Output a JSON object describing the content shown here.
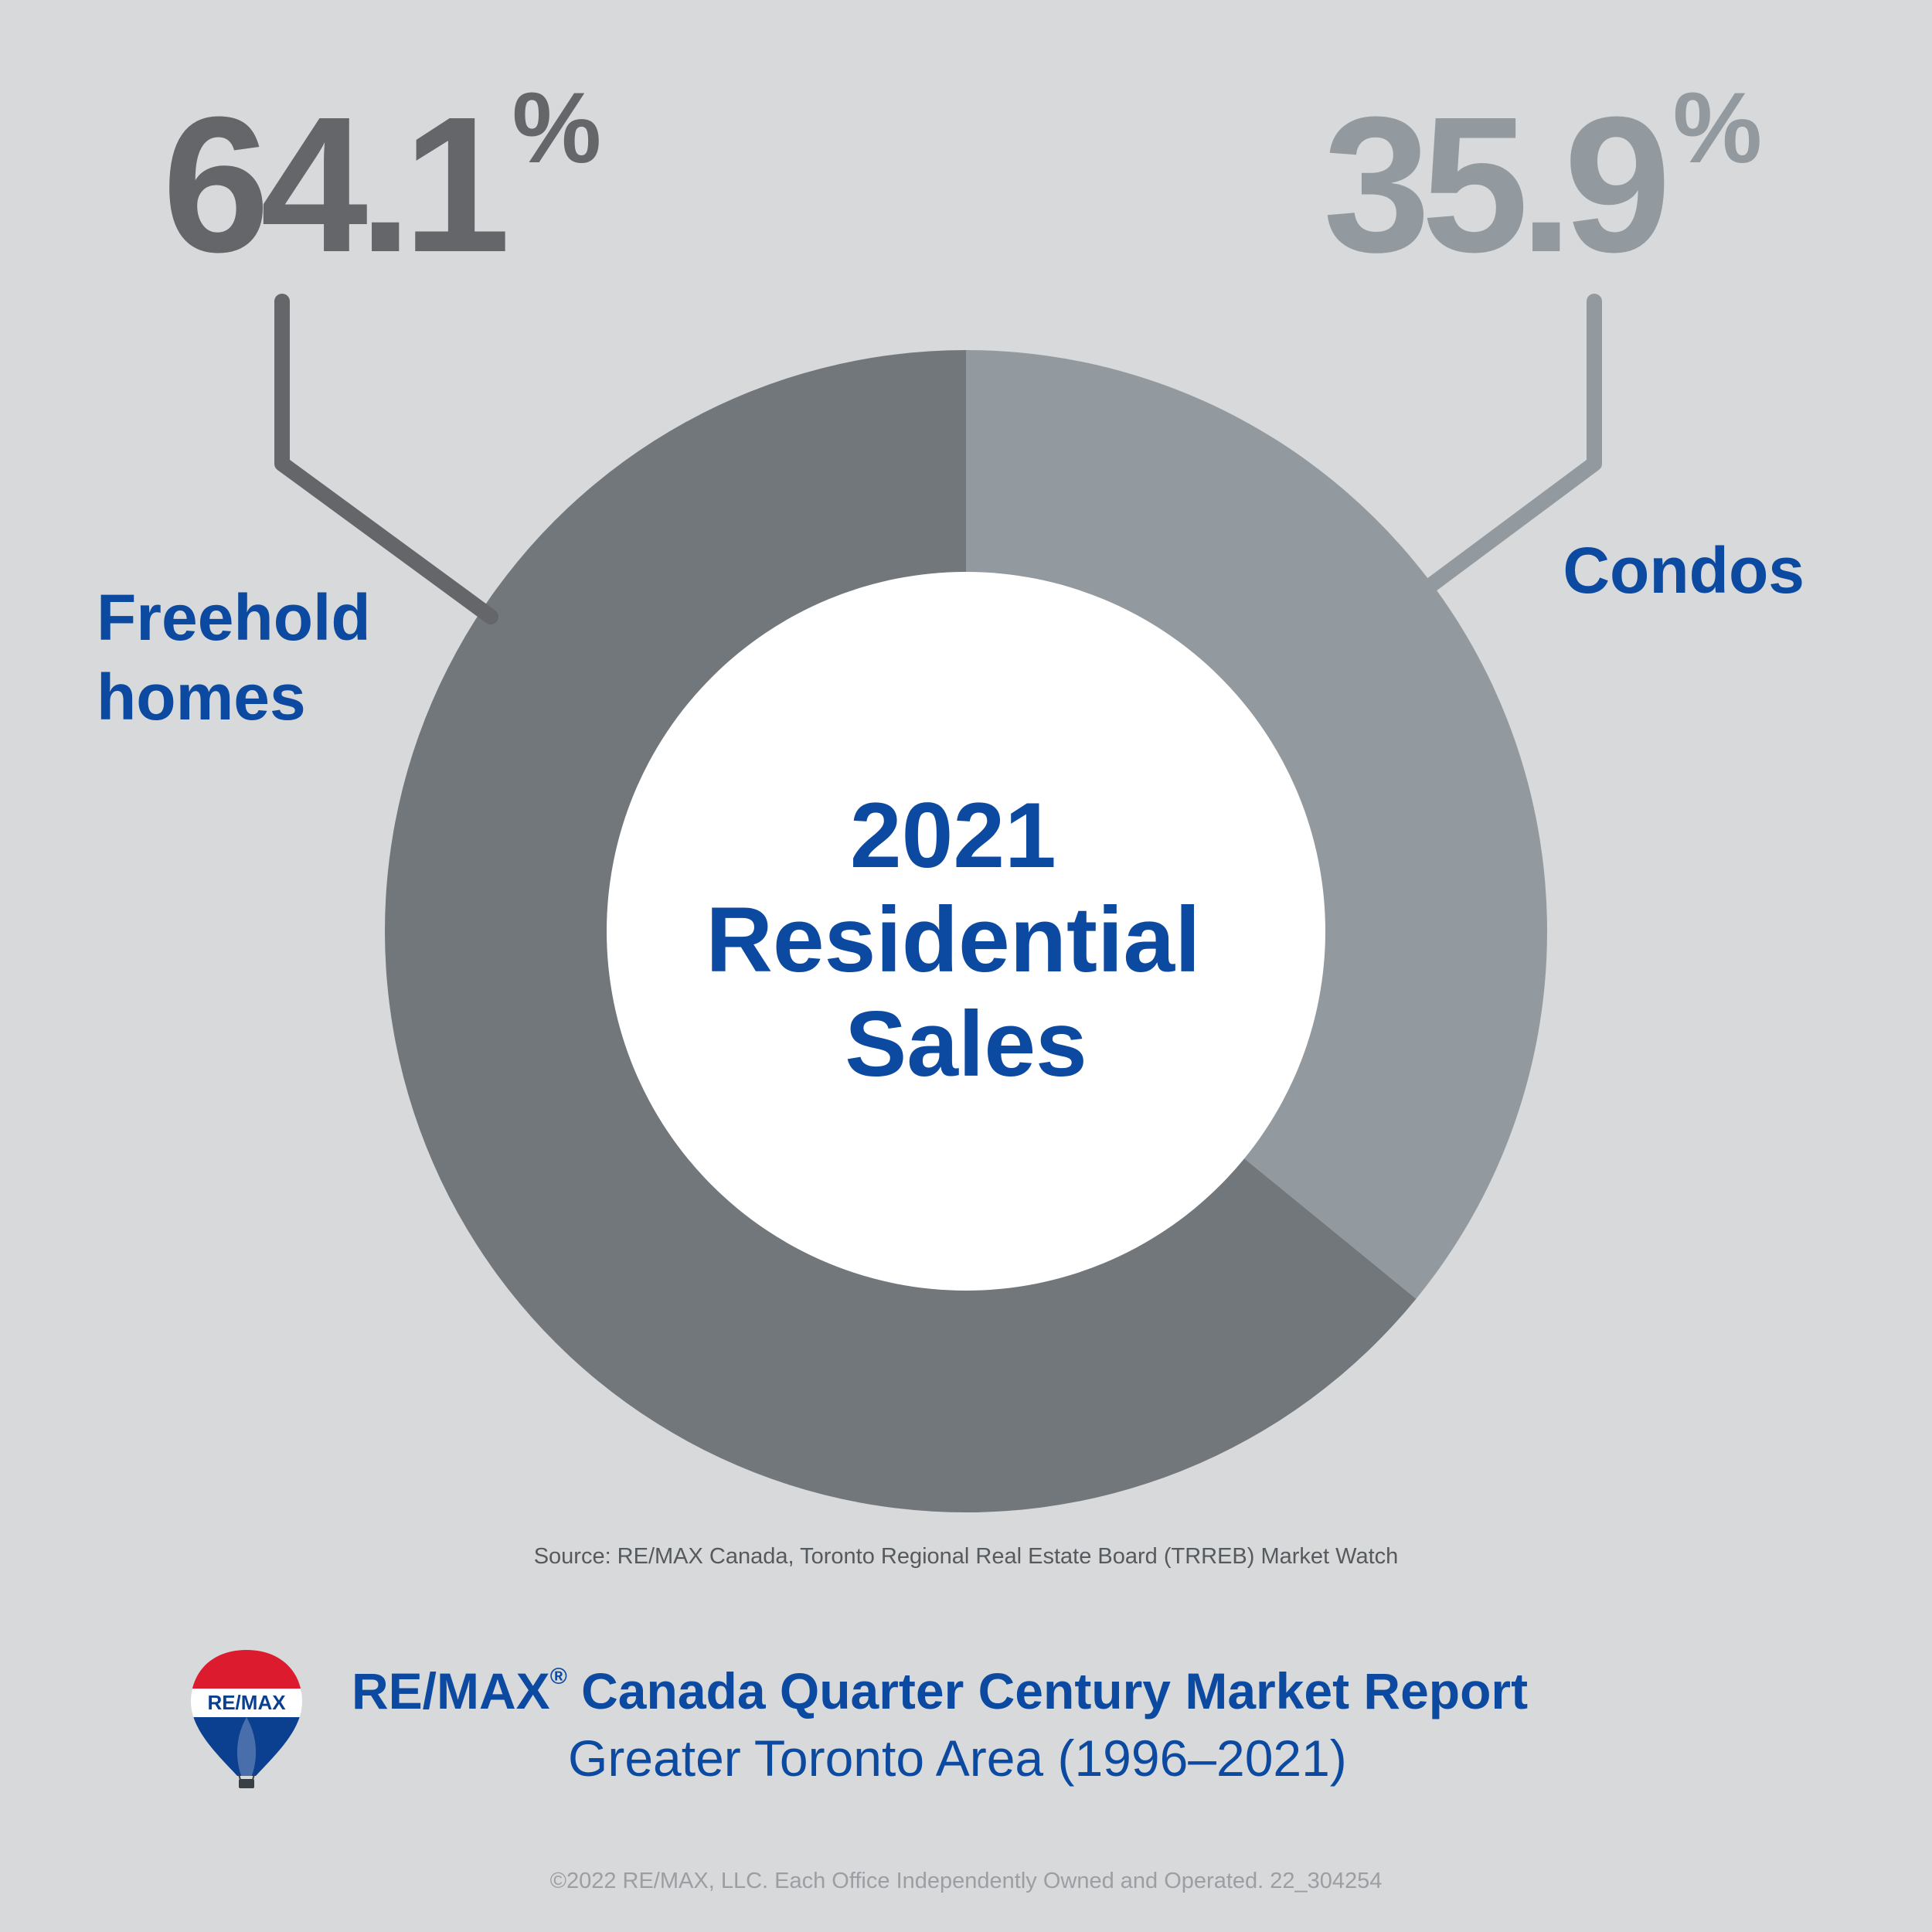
{
  "chart_data": {
    "type": "pie",
    "title": "2021 Residential Sales",
    "title_lines": [
      "2021",
      "Residential",
      "Sales"
    ],
    "series": [
      {
        "name": "Residential Sales",
        "slices": [
          {
            "label": "Condos",
            "label_lines": [
              "Condos"
            ],
            "value": 35.9,
            "display": "35.9",
            "color": "#939a9f"
          },
          {
            "label": "Freehold homes",
            "label_lines": [
              "Freehold",
              "homes"
            ],
            "value": 64.1,
            "display": "64.1",
            "color": "#72777b"
          }
        ]
      }
    ],
    "percent_sign": "%",
    "number_colors": {
      "Freehold homes": "#646669",
      "Condos": "#939a9f"
    },
    "donut_hole_color": "#ffffff",
    "legend": "none"
  },
  "source": "Source: RE/MAX Canada, Toronto Regional Real Estate Board (TRREB) Market Watch",
  "footer": {
    "title_brand": "RE/MAX",
    "title_reg": "®",
    "title_rest": " Canada Quarter Century Market Report",
    "subtitle": "Greater Toronto Area (1996–2021)"
  },
  "logo": {
    "text": "RE/MAX",
    "icon": "balloon-logo-icon",
    "colors": {
      "red": "#dc1c2e",
      "blue": "#0b3f8f"
    }
  },
  "copyright": "©2022 RE/MAX, LLC. Each Office Independently Owned and Operated. 22_304254",
  "colors": {
    "accent": "#0b4aa0",
    "background": "#d8d9da"
  }
}
